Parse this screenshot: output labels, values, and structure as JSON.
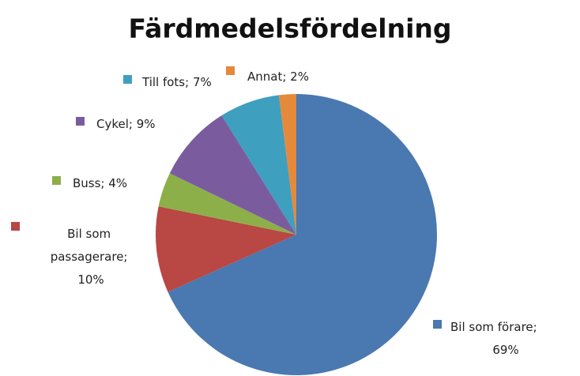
{
  "chart_data": {
    "type": "pie",
    "title": "Färdmedelsfördelning",
    "values": [
      69,
      10,
      4,
      9,
      7,
      2
    ],
    "value_labels": [
      "Bil som förare; 69%",
      "Bil som passagerare; 10%",
      "Buss; 4%",
      "Cykel; 9%",
      "Till fots; 7%",
      "Annat; 2%"
    ],
    "colors": [
      "#4a78b0",
      "#b94744",
      "#8daf49",
      "#7a5c9e",
      "#3f9fbf",
      "#e5893b"
    ]
  }
}
